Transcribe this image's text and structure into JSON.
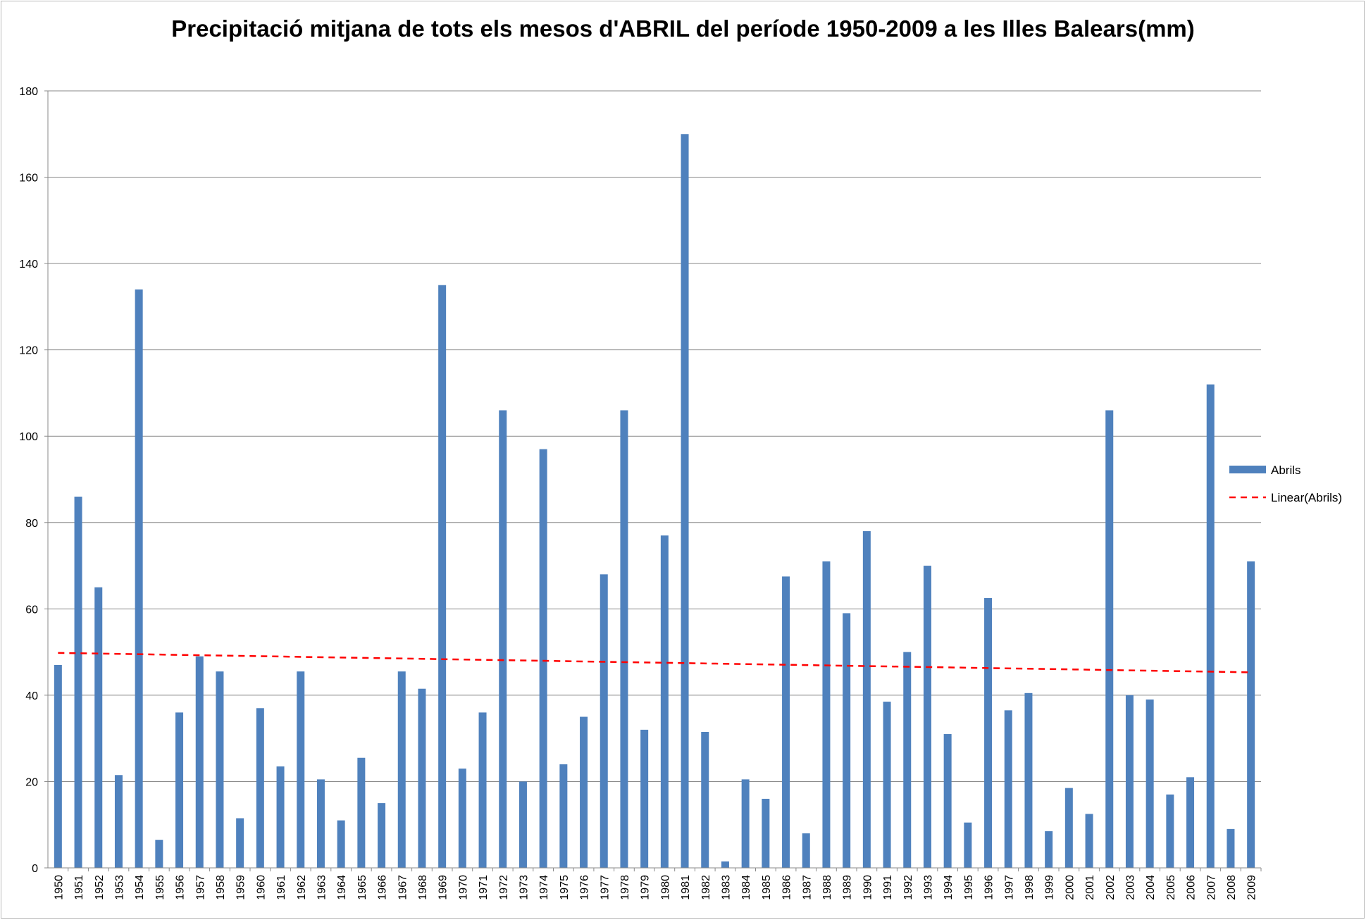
{
  "chart_data": {
    "type": "bar",
    "title": "Precipitació mitjana de tots els mesos d'ABRIL del període 1950-2009 a les Illes Balears(mm)",
    "xlabel": "",
    "ylabel": "",
    "ylim": [
      0,
      180
    ],
    "yticks": [
      0,
      20,
      40,
      60,
      80,
      100,
      120,
      140,
      160,
      180
    ],
    "grid": true,
    "legend_position": "right",
    "categories": [
      "1950",
      "1951",
      "1952",
      "1953",
      "1954",
      "1955",
      "1956",
      "1957",
      "1958",
      "1959",
      "1960",
      "1961",
      "1962",
      "1963",
      "1964",
      "1965",
      "1966",
      "1967",
      "1968",
      "1969",
      "1970",
      "1971",
      "1972",
      "1973",
      "1974",
      "1975",
      "1976",
      "1977",
      "1978",
      "1979",
      "1980",
      "1981",
      "1982",
      "1983",
      "1984",
      "1985",
      "1986",
      "1987",
      "1988",
      "1989",
      "1990",
      "1991",
      "1992",
      "1993",
      "1994",
      "1995",
      "1996",
      "1997",
      "1998",
      "1999",
      "2000",
      "2001",
      "2002",
      "2003",
      "2004",
      "2005",
      "2006",
      "2007",
      "2008",
      "2009"
    ],
    "series": [
      {
        "name": "Abrils",
        "type": "bar",
        "color": "#4f81bd",
        "values": [
          47,
          86,
          65,
          21.5,
          134,
          6.5,
          36,
          49,
          45.5,
          11.5,
          37,
          23.5,
          45.5,
          20.5,
          11,
          25.5,
          15,
          45.5,
          41.5,
          135,
          23,
          36,
          106,
          20,
          97,
          24,
          35,
          68,
          106,
          32,
          77,
          170,
          31.5,
          1.5,
          20.5,
          16,
          67.5,
          8,
          71,
          59,
          78,
          38.5,
          50,
          70,
          31,
          10.5,
          62.5,
          36.5,
          40.5,
          8.5,
          18.5,
          12.5,
          106,
          40,
          39,
          17,
          21,
          112,
          9,
          71
        ]
      },
      {
        "name": "Linear(Abrils)",
        "type": "trendline",
        "color": "#ff0000",
        "style": "dashed",
        "start": 49.8,
        "end": 45.3
      }
    ]
  }
}
